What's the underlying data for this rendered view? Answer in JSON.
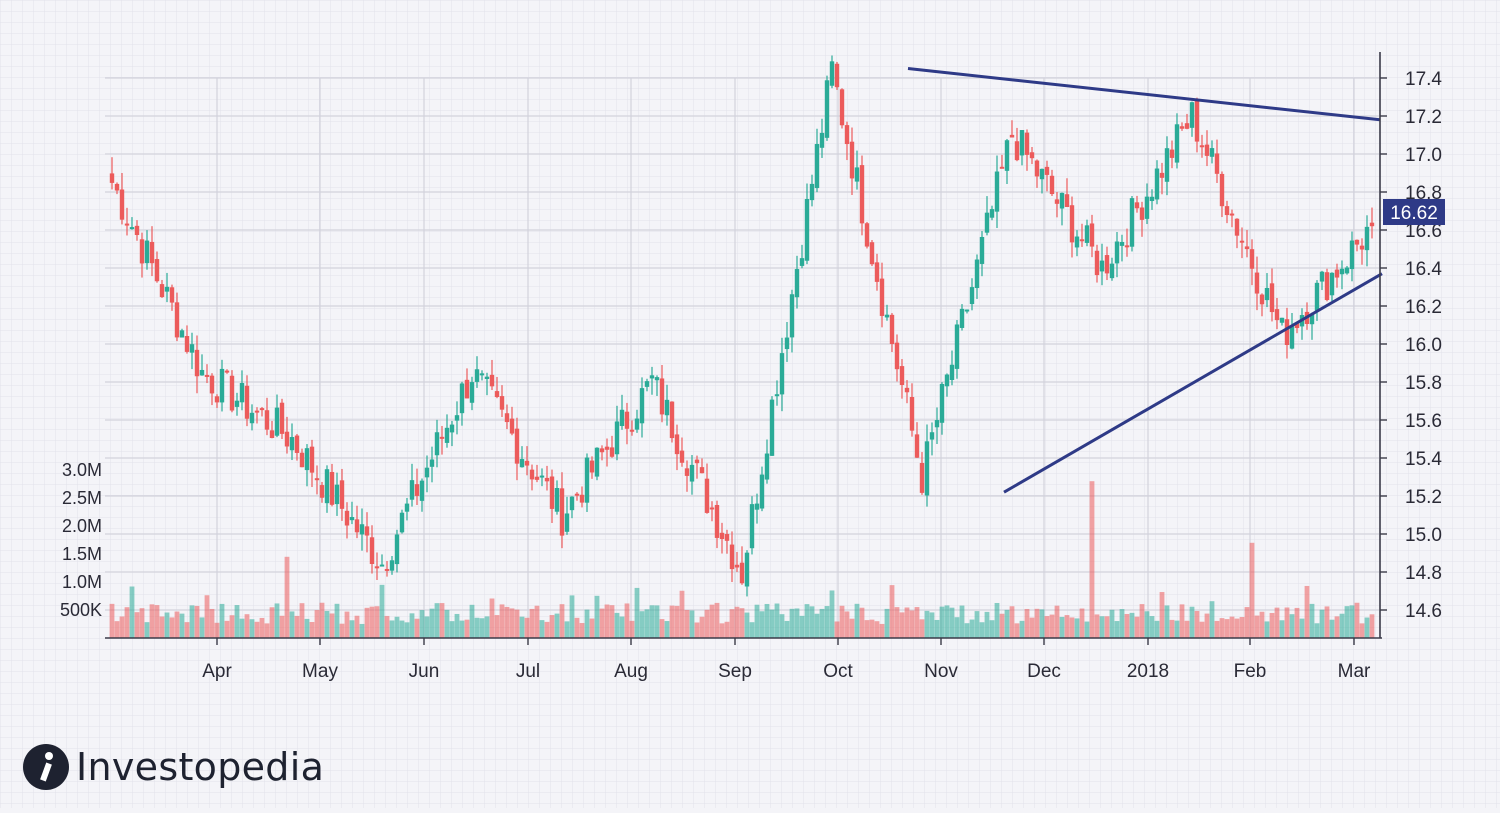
{
  "chart_data": {
    "type": "candlestick",
    "title": "",
    "price_axis": {
      "min": 14.5,
      "max": 17.5,
      "ticks": [
        "17.4",
        "17.2",
        "17.0",
        "16.8",
        "16.6",
        "16.4",
        "16.2",
        "16.0",
        "15.8",
        "15.6",
        "15.4",
        "15.2",
        "15.0",
        "14.8",
        "14.6"
      ]
    },
    "volume_axis": {
      "ticks": [
        "3.0M",
        "2.5M",
        "2.0M",
        "1.5M",
        "1.0M",
        "500K"
      ],
      "tick_values": [
        3000000,
        2500000,
        2000000,
        1500000,
        1000000,
        500000
      ]
    },
    "months": [
      "Apr",
      "May",
      "Jun",
      "Jul",
      "Aug",
      "Sep",
      "Oct",
      "Nov",
      "Dec",
      "2018",
      "Feb",
      "Mar"
    ],
    "current_price": "16.62",
    "colors": {
      "up": "#2aab97",
      "down": "#ec5b5b",
      "trendline": "#2e3a87",
      "label_bg": "#2e3a87"
    },
    "key_points": [
      {
        "period": "Mar start",
        "close": 16.85
      },
      {
        "period": "Apr",
        "close": 15.85
      },
      {
        "period": "May",
        "close": 15.5
      },
      {
        "period": "Jun low",
        "close": 14.85
      },
      {
        "period": "Jun high",
        "close": 15.85
      },
      {
        "period": "Jul",
        "close": 15.1
      },
      {
        "period": "Aug",
        "close": 15.8
      },
      {
        "period": "Sep low",
        "close": 14.8
      },
      {
        "period": "Oct high",
        "close": 17.44
      },
      {
        "period": "Nov low",
        "close": 15.3
      },
      {
        "period": "Dec",
        "close": 17.1
      },
      {
        "period": "2018",
        "close": 16.4
      },
      {
        "period": "Jan high",
        "close": 17.2
      },
      {
        "period": "Feb low",
        "close": 16.05
      },
      {
        "period": "Mar end",
        "close": 16.62
      }
    ],
    "trendlines": [
      {
        "name": "resistance",
        "from": {
          "period": "Oct",
          "price": 17.45
        },
        "to": {
          "period": "Mar",
          "price": 17.18
        }
      },
      {
        "name": "support",
        "from": {
          "period": "Nov",
          "price": 15.22
        },
        "to": {
          "period": "Mar",
          "price": 16.37
        }
      }
    ]
  },
  "brand": {
    "name": "Investopedia"
  }
}
